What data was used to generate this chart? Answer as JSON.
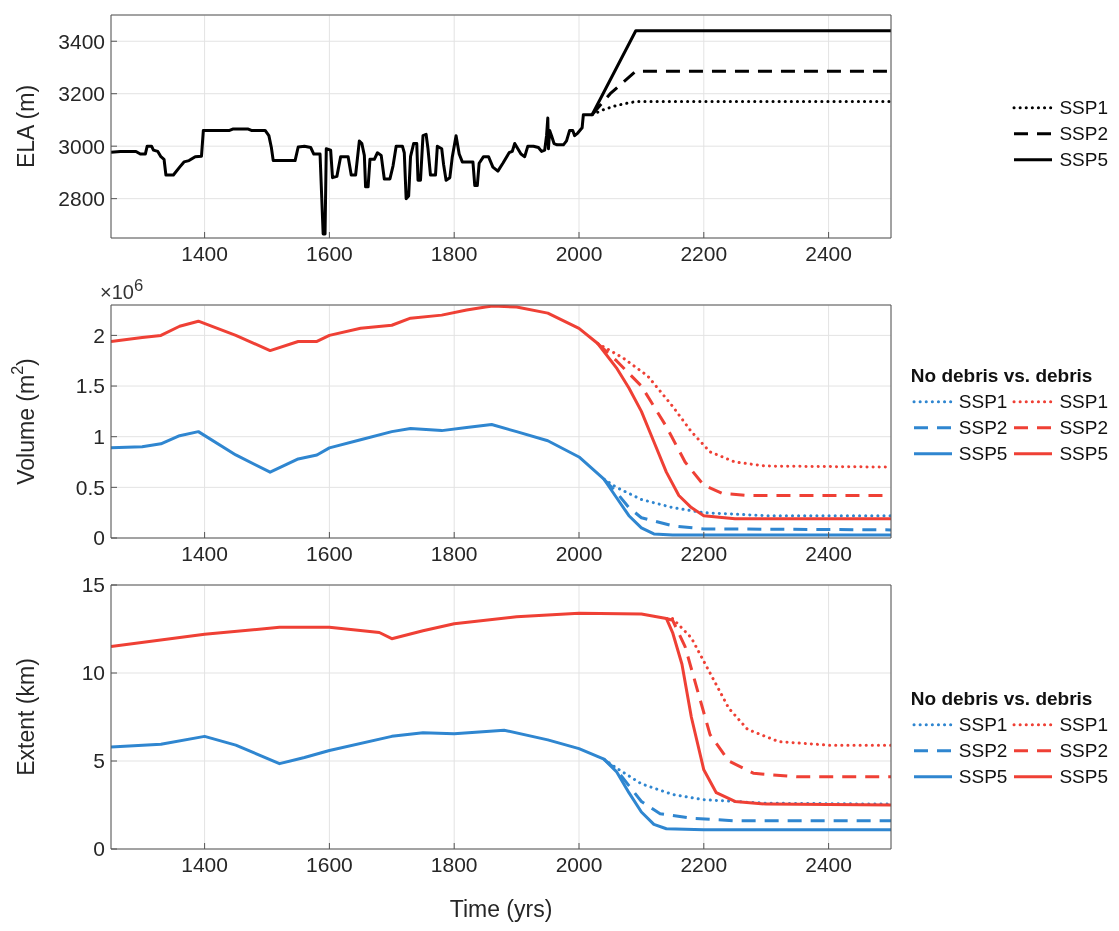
{
  "chart_data": [
    {
      "type": "line",
      "ylabel": "ELA (m)",
      "xlim": [
        1250,
        2500
      ],
      "xticks": [
        1400,
        1600,
        1800,
        2000,
        2200,
        2400
      ],
      "ylim": [
        2650,
        3500
      ],
      "yticks": [
        2800,
        3000,
        3200,
        3400
      ],
      "grid": true,
      "legend": "right",
      "series": [
        {
          "name": "SSP1",
          "color": "#000000",
          "line_style": "dotted",
          "x": [
            2021,
            2040,
            2060,
            2080,
            2091,
            2500
          ],
          "values": [
            3120,
            3140,
            3155,
            3165,
            3170,
            3170
          ]
        },
        {
          "name": "SSP2",
          "color": "#000000",
          "line_style": "dashed",
          "x": [
            2021,
            2050,
            2091,
            2500
          ],
          "values": [
            3120,
            3200,
            3286,
            3286
          ]
        },
        {
          "name": "SSP5",
          "color": "#000000",
          "line_style": "solid",
          "x": [
            1250,
            1265,
            1290,
            1297,
            1305,
            1308,
            1315,
            1318,
            1325,
            1330,
            1335,
            1338,
            1350,
            1360,
            1367,
            1375,
            1385,
            1395,
            1398,
            1440,
            1445,
            1470,
            1475,
            1497,
            1503,
            1507,
            1510,
            1545,
            1550,
            1560,
            1570,
            1575,
            1585,
            1590,
            1593,
            1595,
            1602,
            1605,
            1612,
            1618,
            1630,
            1635,
            1642,
            1648,
            1652,
            1656,
            1658,
            1662,
            1665,
            1672,
            1677,
            1683,
            1688,
            1697,
            1702,
            1707,
            1717,
            1720,
            1723,
            1727,
            1730,
            1735,
            1740,
            1742,
            1746,
            1750,
            1755,
            1758,
            1762,
            1770,
            1773,
            1780,
            1783,
            1787,
            1793,
            1797,
            1803,
            1808,
            1813,
            1830,
            1833,
            1837,
            1840,
            1847,
            1855,
            1862,
            1870,
            1878,
            1888,
            1893,
            1897,
            1902,
            1907,
            1913,
            1918,
            1927,
            1935,
            1940,
            1945,
            1948,
            1950,
            1951,
            1953,
            1956,
            1960,
            1965,
            1975,
            1980,
            1985,
            1990,
            1993,
            1998,
            2005,
            2007,
            2021,
            2091,
            2500
          ],
          "values": [
            2977,
            2980,
            2980,
            2970,
            2970,
            3000,
            3000,
            2985,
            2980,
            2960,
            2950,
            2890,
            2890,
            2920,
            2940,
            2945,
            2960,
            2962,
            3060,
            3060,
            3065,
            3065,
            3060,
            3060,
            3040,
            2995,
            2945,
            2945,
            2997,
            3000,
            2995,
            2970,
            2970,
            2665,
            2665,
            2990,
            2985,
            2880,
            2885,
            2960,
            2960,
            2890,
            2890,
            3020,
            3010,
            2965,
            2845,
            2845,
            2950,
            2950,
            2975,
            2965,
            2875,
            2875,
            2925,
            3000,
            3000,
            2975,
            2800,
            2810,
            2960,
            3010,
            3010,
            2870,
            2870,
            3040,
            3045,
            2990,
            2890,
            2890,
            3000,
            2990,
            2930,
            2870,
            2880,
            2960,
            3040,
            2970,
            2940,
            2940,
            2850,
            2850,
            2935,
            2960,
            2960,
            2920,
            2905,
            2935,
            2975,
            2980,
            3010,
            2990,
            2970,
            2960,
            3000,
            3000,
            2995,
            2980,
            2985,
            3040,
            3107,
            2990,
            3060,
            3040,
            3010,
            3005,
            3005,
            3020,
            3060,
            3060,
            3040,
            3050,
            3070,
            3120,
            3120,
            3440,
            3440
          ]
        }
      ]
    },
    {
      "type": "line",
      "ylabel": "Volume (m$^{2}$)",
      "annotations": [
        "×10$^{6}$"
      ],
      "xlim": [
        1250,
        2500
      ],
      "xticks": [
        1400,
        1600,
        1800,
        2000,
        2200,
        2400
      ],
      "ylim": [
        0,
        2.3
      ],
      "yticks": [
        0,
        0.5,
        1,
        1.5,
        2
      ],
      "grid": true,
      "legend": "right",
      "legend_title": "No debris vs. debris",
      "series": [
        {
          "name": "SSP1",
          "color": "#2f86d0",
          "line_style": "dotted",
          "x": [
            2040,
            2060,
            2100,
            2150,
            2200,
            2300,
            2500
          ],
          "values": [
            0.58,
            0.5,
            0.38,
            0.3,
            0.25,
            0.22,
            0.22
          ]
        },
        {
          "name": "SSP2",
          "color": "#2f86d0",
          "line_style": "dashed",
          "x": [
            2040,
            2060,
            2080,
            2100,
            2150,
            2200,
            2500
          ],
          "values": [
            0.58,
            0.45,
            0.3,
            0.2,
            0.12,
            0.09,
            0.08
          ]
        },
        {
          "name": "SSP5",
          "color": "#2f86d0",
          "line_style": "solid",
          "x": [
            1250,
            1300,
            1330,
            1360,
            1390,
            1450,
            1505,
            1550,
            1580,
            1600,
            1650,
            1700,
            1730,
            1780,
            1820,
            1860,
            1900,
            1950,
            2000,
            2040,
            2060,
            2080,
            2100,
            2120,
            2150,
            2500
          ],
          "values": [
            0.89,
            0.9,
            0.93,
            1.01,
            1.05,
            0.82,
            0.65,
            0.78,
            0.82,
            0.89,
            0.97,
            1.05,
            1.08,
            1.06,
            1.09,
            1.12,
            1.05,
            0.96,
            0.8,
            0.58,
            0.4,
            0.22,
            0.1,
            0.04,
            0.03,
            0.03
          ]
        },
        {
          "name": "SSP1",
          "color": "#ef4035",
          "line_style": "dotted",
          "x": [
            2030,
            2070,
            2110,
            2150,
            2180,
            2210,
            2250,
            2300,
            2500
          ],
          "values": [
            1.92,
            1.78,
            1.6,
            1.3,
            1.05,
            0.85,
            0.75,
            0.71,
            0.7
          ]
        },
        {
          "name": "SSP2",
          "color": "#ef4035",
          "line_style": "dashed",
          "x": [
            2030,
            2060,
            2100,
            2140,
            2170,
            2200,
            2230,
            2270,
            2500
          ],
          "values": [
            1.92,
            1.75,
            1.5,
            1.1,
            0.75,
            0.52,
            0.44,
            0.42,
            0.42
          ]
        },
        {
          "name": "SSP5",
          "color": "#ef4035",
          "line_style": "solid",
          "x": [
            1250,
            1300,
            1330,
            1360,
            1390,
            1450,
            1505,
            1550,
            1580,
            1600,
            1650,
            1700,
            1730,
            1780,
            1820,
            1850,
            1862,
            1900,
            1950,
            2000,
            2030,
            2060,
            2080,
            2100,
            2120,
            2140,
            2160,
            2180,
            2200,
            2250,
            2500
          ],
          "values": [
            1.94,
            1.98,
            2.0,
            2.09,
            2.14,
            2.0,
            1.85,
            1.94,
            1.94,
            2.0,
            2.07,
            2.1,
            2.17,
            2.2,
            2.25,
            2.28,
            2.29,
            2.28,
            2.22,
            2.07,
            1.92,
            1.68,
            1.48,
            1.25,
            0.95,
            0.65,
            0.42,
            0.3,
            0.22,
            0.19,
            0.19
          ]
        }
      ]
    },
    {
      "type": "line",
      "ylabel": "Extent (km)",
      "xlabel": "Time (yrs)",
      "xlim": [
        1250,
        2500
      ],
      "xticks": [
        1400,
        1600,
        1800,
        2000,
        2200,
        2400
      ],
      "ylim": [
        0,
        15
      ],
      "yticks": [
        0,
        5,
        10,
        15
      ],
      "grid": true,
      "legend": "right",
      "legend_title": "No debris vs. debris",
      "series": [
        {
          "name": "SSP1",
          "color": "#2f86d0",
          "line_style": "dotted",
          "x": [
            2040,
            2060,
            2100,
            2150,
            2200,
            2300,
            2500
          ],
          "values": [
            5.1,
            4.6,
            3.7,
            3.1,
            2.8,
            2.6,
            2.55
          ]
        },
        {
          "name": "SSP2",
          "color": "#2f86d0",
          "line_style": "dashed",
          "x": [
            2040,
            2060,
            2080,
            2100,
            2130,
            2180,
            2250,
            2500
          ],
          "values": [
            5.1,
            4.5,
            3.6,
            2.7,
            2.0,
            1.75,
            1.6,
            1.6
          ]
        },
        {
          "name": "SSP5",
          "color": "#2f86d0",
          "line_style": "solid",
          "x": [
            1250,
            1330,
            1400,
            1450,
            1520,
            1560,
            1600,
            1700,
            1750,
            1800,
            1880,
            1950,
            2000,
            2040,
            2060,
            2080,
            2100,
            2120,
            2140,
            2200,
            2500
          ],
          "values": [
            5.8,
            5.95,
            6.4,
            5.9,
            4.85,
            5.2,
            5.6,
            6.4,
            6.6,
            6.55,
            6.75,
            6.2,
            5.7,
            5.1,
            4.4,
            3.2,
            2.1,
            1.4,
            1.15,
            1.1,
            1.1
          ]
        },
        {
          "name": "SSP1",
          "color": "#ef4035",
          "line_style": "dotted",
          "x": [
            2140,
            2150,
            2180,
            2210,
            2240,
            2270,
            2320,
            2400,
            2500
          ],
          "values": [
            13.1,
            13.1,
            12.0,
            10.0,
            8.0,
            6.8,
            6.1,
            5.9,
            5.9
          ]
        },
        {
          "name": "SSP2",
          "color": "#ef4035",
          "line_style": "dashed",
          "x": [
            2140,
            2150,
            2170,
            2190,
            2210,
            2240,
            2280,
            2350,
            2500
          ],
          "values": [
            13.1,
            13.0,
            11.5,
            9.0,
            6.5,
            5.0,
            4.3,
            4.1,
            4.1
          ]
        },
        {
          "name": "SSP5",
          "color": "#ef4035",
          "line_style": "solid",
          "x": [
            1250,
            1400,
            1520,
            1600,
            1680,
            1700,
            1750,
            1800,
            1900,
            2000,
            2100,
            2140,
            2150,
            2165,
            2180,
            2200,
            2220,
            2250,
            2300,
            2500
          ],
          "values": [
            11.5,
            12.2,
            12.6,
            12.6,
            12.3,
            11.95,
            12.4,
            12.8,
            13.2,
            13.4,
            13.35,
            13.1,
            12.3,
            10.5,
            7.5,
            4.5,
            3.2,
            2.7,
            2.55,
            2.5
          ]
        }
      ]
    }
  ]
}
